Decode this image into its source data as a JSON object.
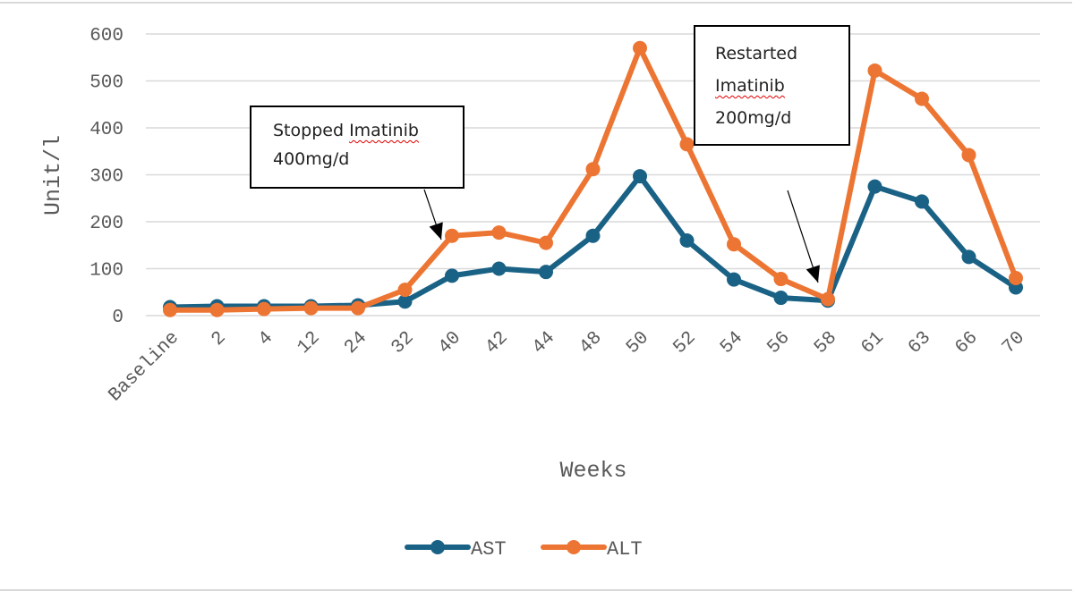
{
  "chart_data": {
    "type": "line",
    "title": "",
    "xlabel": "Weeks",
    "ylabel": "Unit/l",
    "ylim": [
      0,
      600
    ],
    "yticks": [
      0,
      100,
      200,
      300,
      400,
      500,
      600
    ],
    "grid": true,
    "legend_position": "bottom",
    "categories": [
      "Baseline",
      "2",
      "4",
      "12",
      "24",
      "32",
      "40",
      "42",
      "44",
      "48",
      "50",
      "52",
      "54",
      "56",
      "58",
      "61",
      "63",
      "66",
      "70"
    ],
    "series": [
      {
        "name": "AST",
        "color": "#1a6285",
        "values": [
          18,
          20,
          20,
          20,
          22,
          30,
          85,
          100,
          93,
          170,
          297,
          160,
          77,
          38,
          32,
          275,
          243,
          125,
          60
        ]
      },
      {
        "name": "ALT",
        "color": "#ed7533",
        "values": [
          12,
          12,
          14,
          16,
          16,
          55,
          170,
          177,
          155,
          312,
          570,
          365,
          152,
          78,
          35,
          522,
          462,
          342,
          80
        ]
      }
    ],
    "annotations": [
      {
        "id": "stopped",
        "lines": [
          "Stopped",
          "Imatinib",
          "400mg/d"
        ],
        "points_to_category": "40"
      },
      {
        "id": "restarted",
        "lines": [
          "Restarted",
          "Imatinib",
          "200mg/d"
        ],
        "points_to_category": "58"
      }
    ]
  }
}
